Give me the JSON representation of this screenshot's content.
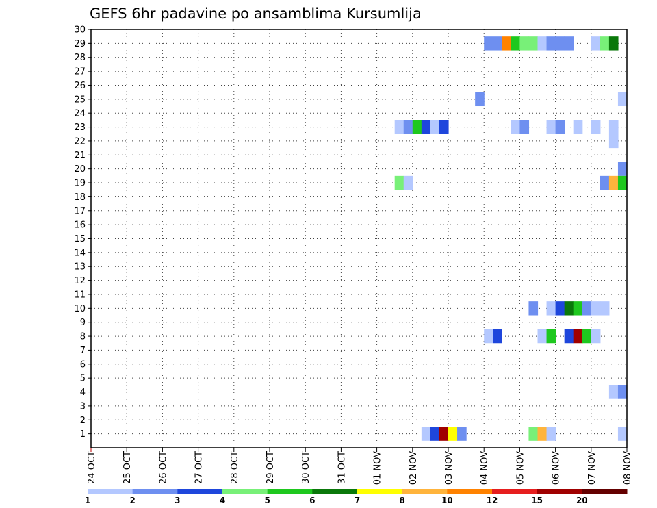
{
  "chart_data": {
    "type": "heatmap",
    "title": "GEFS 6hr padavine po ansamblima Kursumlija",
    "xlabel": "",
    "ylabel": "",
    "x_ticks": [
      "24 OCT",
      "25 OCT",
      "26 OCT",
      "27 OCT",
      "28 OCT",
      "29 OCT",
      "30 OCT",
      "31 OCT",
      "01 NOV",
      "02 NOV",
      "03 NOV",
      "04 NOV",
      "05 NOV",
      "06 NOV",
      "07 NOV",
      "08 NOV"
    ],
    "y_ticks": [
      1,
      2,
      3,
      4,
      5,
      6,
      7,
      8,
      9,
      10,
      11,
      12,
      13,
      14,
      15,
      16,
      17,
      18,
      19,
      20,
      21,
      22,
      23,
      24,
      25,
      26,
      27,
      28,
      29,
      30
    ],
    "xlim_days": [
      0,
      15
    ],
    "ylim": [
      0,
      30
    ],
    "grid": true,
    "legend_position": "bottom",
    "legend": {
      "labels": [
        "1",
        "2",
        "3",
        "4",
        "5",
        "6",
        "7",
        "8",
        "10",
        "12",
        "15",
        "20"
      ],
      "colors": [
        "#b4c8ff",
        "#6e8ff0",
        "#1e46dc",
        "#78f078",
        "#1ec81e",
        "#0a780a",
        "#ffff00",
        "#ffb43c",
        "#ff8200",
        "#e61e1e",
        "#a00000",
        "#640000"
      ]
    },
    "series": [
      {
        "member": 29,
        "cells": [
          [
            11.0,
            "#6e8ff0"
          ],
          [
            11.25,
            "#6e8ff0"
          ],
          [
            11.5,
            "#ff8200"
          ],
          [
            11.75,
            "#1ec81e"
          ],
          [
            12.0,
            "#78f078"
          ],
          [
            12.25,
            "#78f078"
          ],
          [
            12.5,
            "#b4c8ff"
          ],
          [
            12.75,
            "#6e8ff0"
          ],
          [
            13.0,
            "#6e8ff0"
          ],
          [
            13.25,
            "#6e8ff0"
          ],
          [
            14.0,
            "#b4c8ff"
          ],
          [
            14.25,
            "#78f078"
          ],
          [
            14.5,
            "#0a780a"
          ]
        ]
      },
      {
        "member": 25,
        "cells": [
          [
            10.75,
            "#6e8ff0"
          ],
          [
            14.75,
            "#b4c8ff"
          ]
        ]
      },
      {
        "member": 23,
        "cells": [
          [
            8.5,
            "#b4c8ff"
          ],
          [
            8.75,
            "#6e8ff0"
          ],
          [
            9.0,
            "#1ec81e"
          ],
          [
            9.25,
            "#1e46dc"
          ],
          [
            9.5,
            "#b4c8ff"
          ],
          [
            9.75,
            "#1e46dc"
          ],
          [
            11.75,
            "#b4c8ff"
          ],
          [
            12.0,
            "#6e8ff0"
          ],
          [
            12.75,
            "#b4c8ff"
          ],
          [
            13.0,
            "#6e8ff0"
          ],
          [
            13.5,
            "#b4c8ff"
          ],
          [
            14.0,
            "#b4c8ff"
          ],
          [
            14.5,
            "#b4c8ff"
          ]
        ]
      },
      {
        "member": 22,
        "cells": [
          [
            14.5,
            "#b4c8ff"
          ]
        ]
      },
      {
        "member": 20,
        "cells": [
          [
            14.75,
            "#6e8ff0"
          ]
        ]
      },
      {
        "member": 19,
        "cells": [
          [
            8.5,
            "#78f078"
          ],
          [
            8.75,
            "#b4c8ff"
          ],
          [
            14.25,
            "#6e8ff0"
          ],
          [
            14.5,
            "#ffb43c"
          ],
          [
            14.75,
            "#1ec81e"
          ]
        ]
      },
      {
        "member": 10,
        "cells": [
          [
            12.25,
            "#6e8ff0"
          ],
          [
            12.75,
            "#b4c8ff"
          ],
          [
            13.0,
            "#1e46dc"
          ],
          [
            13.25,
            "#0a780a"
          ],
          [
            13.5,
            "#1ec81e"
          ],
          [
            13.75,
            "#6e8ff0"
          ],
          [
            14.0,
            "#b4c8ff"
          ],
          [
            14.25,
            "#b4c8ff"
          ]
        ]
      },
      {
        "member": 8,
        "cells": [
          [
            11.0,
            "#b4c8ff"
          ],
          [
            11.25,
            "#1e46dc"
          ],
          [
            12.5,
            "#b4c8ff"
          ],
          [
            12.75,
            "#1ec81e"
          ],
          [
            13.25,
            "#1e46dc"
          ],
          [
            13.5,
            "#a00000"
          ],
          [
            13.75,
            "#1ec81e"
          ],
          [
            14.0,
            "#b4c8ff"
          ]
        ]
      },
      {
        "member": 4,
        "cells": [
          [
            14.5,
            "#b4c8ff"
          ],
          [
            14.75,
            "#6e8ff0"
          ]
        ]
      },
      {
        "member": 1,
        "cells": [
          [
            9.25,
            "#b4c8ff"
          ],
          [
            9.5,
            "#1e46dc"
          ],
          [
            9.75,
            "#a00000"
          ],
          [
            10.0,
            "#ffff00"
          ],
          [
            10.25,
            "#6e8ff0"
          ],
          [
            12.25,
            "#78f078"
          ],
          [
            12.5,
            "#ffb43c"
          ],
          [
            12.75,
            "#b4c8ff"
          ],
          [
            14.75,
            "#b4c8ff"
          ]
        ]
      }
    ]
  }
}
